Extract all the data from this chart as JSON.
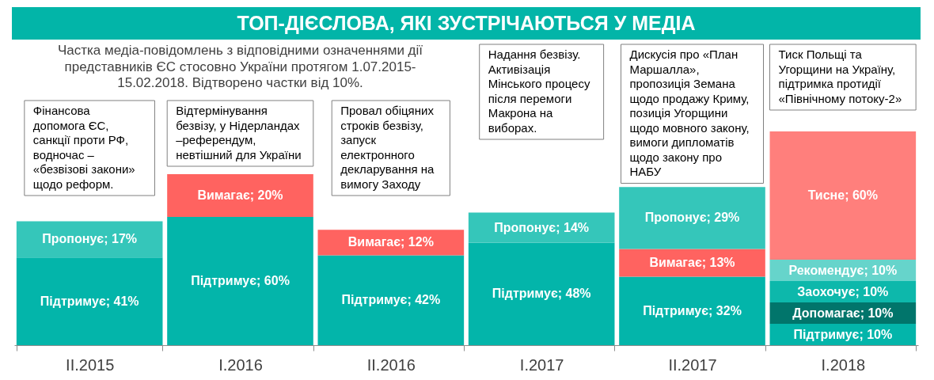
{
  "chart_data": {
    "type": "bar",
    "stacked": true,
    "title": "ТОП-ДІЄСЛОВА, ЯКІ ЗУСТРІЧАЮТЬСЯ У МЕДІА",
    "subtitle": "Частка медіа-повідомлень з відповідними означеннями дії\nпредставників ЄС стосовно України протягом 1.07.2015-\n15.02.2018. Відтворено частки від 10%.",
    "categories": [
      "II.2015",
      "I.2016",
      "II.2016",
      "I.2017",
      "II.2017",
      "I.2018"
    ],
    "series": [
      {
        "color": "#03b5aa",
        "values": [
          41,
          60,
          42,
          48,
          32,
          10
        ],
        "value_labels": [
          "Підтримує; 41%",
          "Підтримує; 60%",
          "Підтримує; 42%",
          "Підтримує; 48%",
          "Підтримує; 32%",
          "Підтримує; 10%"
        ]
      },
      {
        "color": "#01756b",
        "values": [
          null,
          null,
          null,
          null,
          null,
          10
        ],
        "value_labels": [
          null,
          null,
          null,
          null,
          null,
          "Допомагає; 10%"
        ]
      },
      {
        "color": "#0db8ab",
        "values": [
          null,
          null,
          null,
          null,
          null,
          10
        ],
        "value_labels": [
          null,
          null,
          null,
          null,
          null,
          "Заохочує; 10%"
        ]
      },
      {
        "color": "#66d4cb",
        "values": [
          null,
          null,
          null,
          null,
          null,
          10
        ],
        "value_labels": [
          null,
          null,
          null,
          null,
          null,
          "Рекомендує; 10%"
        ]
      },
      {
        "color": "#ff6360",
        "values": [
          null,
          20,
          12,
          null,
          13,
          null
        ],
        "value_labels": [
          null,
          "Вимагає; 20%",
          "Вимагає; 12%",
          null,
          "Вимагає; 13%",
          null
        ]
      },
      {
        "color": "#35c6ba",
        "values": [
          17,
          null,
          null,
          14,
          29,
          null
        ],
        "value_labels": [
          "Пропонує; 17%",
          null,
          null,
          "Пропонує; 14%",
          "Пропонує; 29%",
          null
        ]
      },
      {
        "color": "#ff7f7c",
        "values": [
          null,
          null,
          null,
          null,
          null,
          60
        ],
        "value_labels": [
          null,
          null,
          null,
          null,
          null,
          "Тисне; 60%"
        ]
      }
    ],
    "annotations": [
      "Фінансова\nдопомога ЄС,\nсанкції проти РФ,\nводночас –\n«безвізові закони»\nщодо реформ.",
      "Відтермінування\nбезвізу, у Нідерландах\n–референдум,\nневтішний для України",
      "Провал обіцяних\nстроків безвізу,\nзапуск\nелектронного\nдекларування на\nвимогу Заходу",
      "Надання безвізу.\nАктивізація\nМінського процесу\nпісля перемоги\nМакрона на\nвиборах.",
      "Дискусія про «План\nМаршалла»,\nпропозиція Земана\nщодо продажу Криму,\nпозиція Угорщини\nщодо мовного закону,\nвимоги дипломатів\nщодо закону про\nНАБУ",
      "Тиск Польщі та\nУгорщини на Україну,\nпідтримка протидії\n«Північному потоку-2»"
    ]
  }
}
